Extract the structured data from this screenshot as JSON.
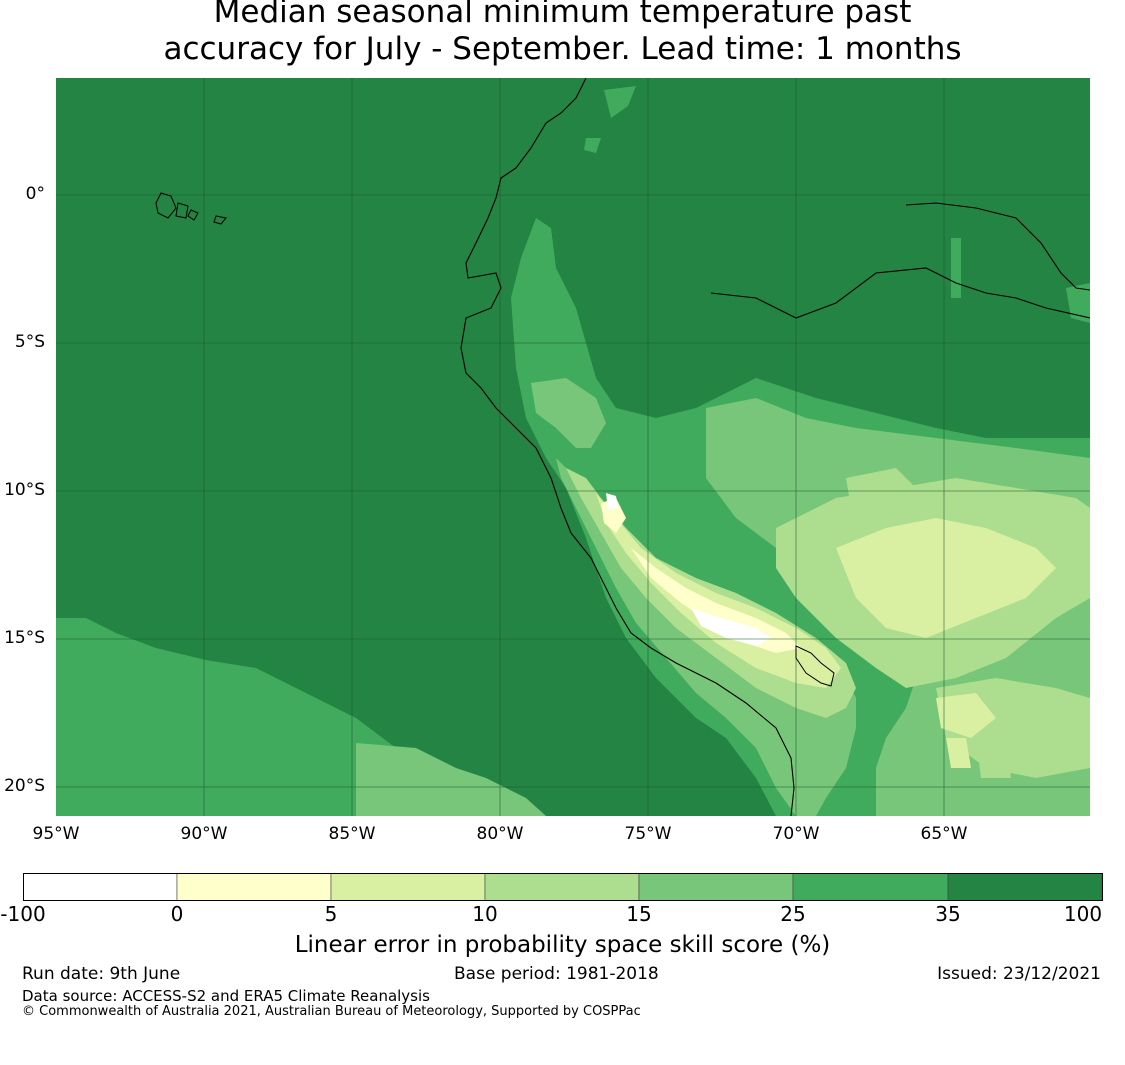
{
  "title": {
    "line1": "Median seasonal minimum temperature past",
    "line2": "accuracy for July - September. Lead time: 1 months"
  },
  "map": {
    "lat_labels": [
      "0°",
      "5°S",
      "10°S",
      "15°S",
      "20°S"
    ],
    "lon_labels": [
      "95°W",
      "90°W",
      "85°W",
      "80°W",
      "75°W",
      "70°W",
      "65°W"
    ]
  },
  "colorbar": {
    "tick_labels": [
      "-100",
      "0",
      "5",
      "10",
      "15",
      "25",
      "35",
      "100"
    ],
    "colors": [
      "#ffffff",
      "#ffffcc",
      "#d9f0a3",
      "#addd8e",
      "#78c679",
      "#41ab5d",
      "#238443"
    ],
    "label": "Linear error in probability space skill score (%)"
  },
  "footer": {
    "run_date": "Run date: 9th June",
    "base_period": "Base period: 1981-2018",
    "issued": "Issued: 23/12/2021",
    "data_source": "Data source: ACCESS-S2 and ERA5 Climate Reanalysis",
    "copyright": "© Commonwealth of Australia 2021, Australian Bureau of Meteorology, Supported by COSPPac"
  }
}
